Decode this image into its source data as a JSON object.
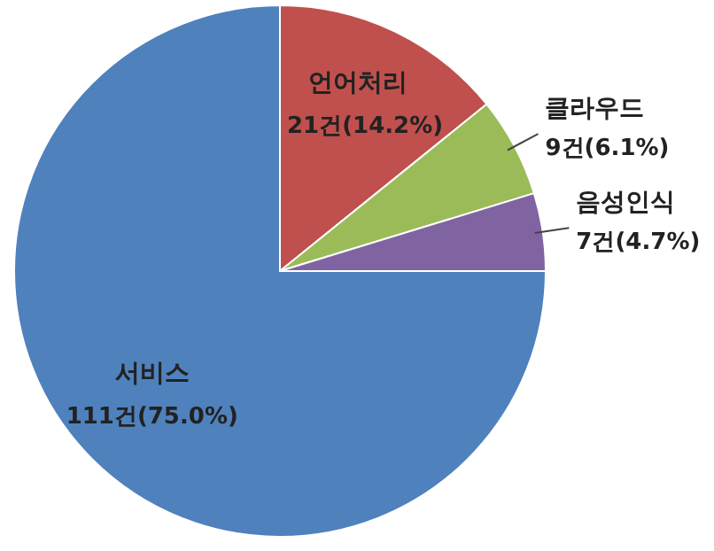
{
  "chart_data": {
    "type": "pie",
    "categories": [
      "언어처리",
      "클라우드",
      "음성인식",
      "서비스"
    ],
    "values": [
      21,
      9,
      7,
      111
    ],
    "colors": [
      "#c0504d",
      "#9bbb59",
      "#8064a2",
      "#4f81bd"
    ],
    "value_labels": [
      "21건(14.2%)",
      "9건(6.1%)",
      "7건(4.7%)",
      "111건(75.0%)"
    ]
  }
}
